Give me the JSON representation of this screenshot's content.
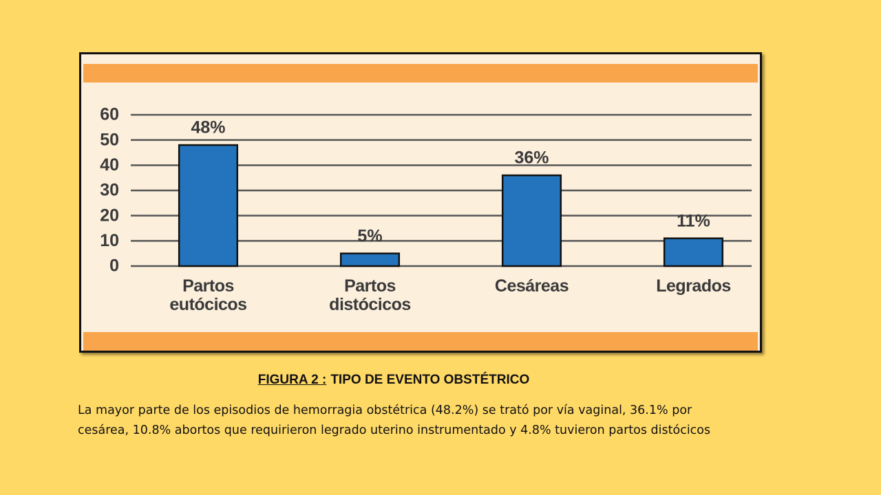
{
  "chart_data": {
    "type": "bar",
    "categories": [
      "Partos eutócicos",
      "Partos distócicos",
      "Cesáreas",
      "Legrados"
    ],
    "values": [
      48,
      5,
      36,
      11
    ],
    "value_labels": [
      "48%",
      "5%",
      "36%",
      "11%"
    ],
    "color": "#2474bd",
    "ylim": [
      0,
      60
    ],
    "yticks": [
      0,
      10,
      20,
      30,
      40,
      50,
      60
    ],
    "grid": true
  },
  "caption": {
    "label": "FIGURA 2 :",
    "title": "TIPO DE EVENTO OBSTÉTRICO"
  },
  "description": "La mayor parte de los episodios de hemorragia obstétrica (48.2%) se trató por vía vaginal, 36.1% por cesárea, 10.8% abortos que requirieron legrado uterino instrumentado y 4.8% tuvieron partos distócicos"
}
